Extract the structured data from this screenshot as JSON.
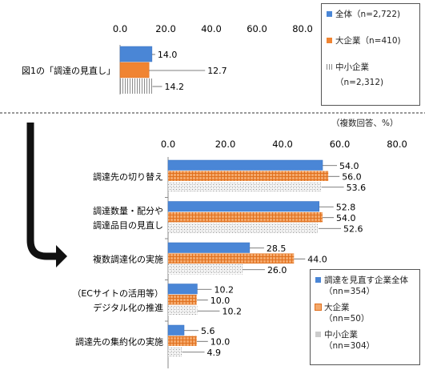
{
  "chart_data": [
    {
      "type": "bar",
      "orientation": "horizontal",
      "categories": [
        "図1の「調達の見直し」"
      ],
      "xlim": [
        0,
        80
      ],
      "xticks": [
        "0.0",
        "20.0",
        "40.0",
        "60.0",
        "80.0"
      ],
      "series": [
        {
          "name": "全体（n=2,722)",
          "values": [
            14.0
          ],
          "labels": [
            "14.0"
          ],
          "color": "#4a86d6",
          "pattern": "solid"
        },
        {
          "name": "大企業（n=410)",
          "values": [
            12.7
          ],
          "labels": [
            "12.7"
          ],
          "color": "#f08432",
          "pattern": "solid"
        },
        {
          "name": "中小企業",
          "name_line2": "（n=2,312)",
          "values": [
            14.2
          ],
          "labels": [
            "14.2"
          ],
          "color": "#9a9a9a",
          "pattern": "vertical-stripes"
        }
      ]
    },
    {
      "type": "bar",
      "orientation": "horizontal",
      "unit_note": "（複数回答、%）",
      "categories": [
        [
          "調達先の切り替え"
        ],
        [
          "調達数量・配分や",
          "調達品目の見直し"
        ],
        [
          "複数調達化の実施"
        ],
        [
          "（ECサイトの活用等）",
          "デジタル化の推進"
        ],
        [
          "調達先の集約化の実施"
        ]
      ],
      "xlim": [
        0,
        80
      ],
      "xticks": [
        "0.0",
        "20.0",
        "40.0",
        "60.0",
        "80.0"
      ],
      "series": [
        {
          "name": "調達を見直す企業全体",
          "name_line2": "（nn=354）",
          "values": [
            54.0,
            52.8,
            28.5,
            10.2,
            5.6
          ],
          "labels": [
            "54.0",
            "52.8",
            "28.5",
            "10.2",
            "5.6"
          ],
          "color": "#4a86d6",
          "pattern": "solid"
        },
        {
          "name": "大企業",
          "name_line2": "（nn=50）",
          "values": [
            56.0,
            54.0,
            44.0,
            10.0,
            10.0
          ],
          "labels": [
            "56.0",
            "54.0",
            "44.0",
            "10.0",
            "10.0"
          ],
          "color": "#f08432",
          "pattern": "grid"
        },
        {
          "name": "中小企業",
          "name_line2": "（nn=304）",
          "values": [
            53.6,
            52.6,
            26.0,
            10.2,
            4.9
          ],
          "labels": [
            "53.6",
            "52.6",
            "26.0",
            "10.2",
            "4.9"
          ],
          "color": "#9a9a9a",
          "pattern": "dots"
        }
      ]
    }
  ]
}
